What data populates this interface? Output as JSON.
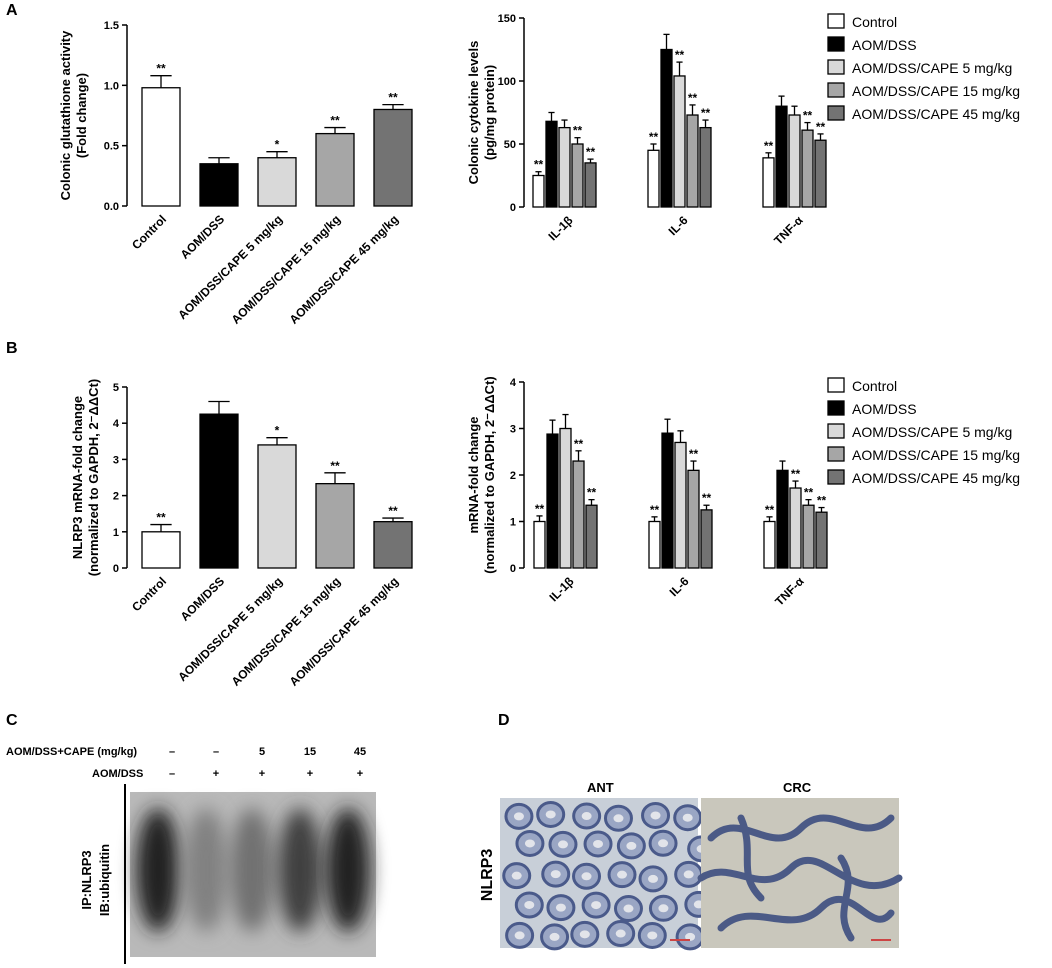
{
  "panels": {
    "A": "A",
    "B": "B",
    "C": "C",
    "D": "D"
  },
  "groups": [
    "Control",
    "AOM/DSS",
    "AOM/DSS/CAPE 5 mg/kg",
    "AOM/DSS/CAPE 15 mg/kg",
    "AOM/DSS/CAPE 45 mg/kg"
  ],
  "colors": {
    "Control": "#ffffff",
    "AOM/DSS": "#000000",
    "AOM/DSS/CAPE 5 mg/kg": "#d9d9d9",
    "AOM/DSS/CAPE 15 mg/kg": "#a6a6a6",
    "AOM/DSS/CAPE 45 mg/kg": "#737373"
  },
  "chart_data": [
    {
      "id": "A-left",
      "type": "bar",
      "ylabel_lines": [
        "Colonic glutathione activity",
        "(Fold change)"
      ],
      "ylim": [
        0,
        1.5
      ],
      "yticks": [
        "0.0",
        "0.5",
        "1.0",
        "1.5"
      ],
      "categories": [
        "Control",
        "AOM/DSS",
        "AOM/DSS/CAPE 5 mg/kg",
        "AOM/DSS/CAPE 15 mg/kg",
        "AOM/DSS/CAPE 45 mg/kg"
      ],
      "values": [
        0.98,
        0.35,
        0.4,
        0.6,
        0.8
      ],
      "errors": [
        0.1,
        0.05,
        0.05,
        0.05,
        0.04
      ],
      "annotations": [
        "**",
        "",
        "*",
        "**",
        "**"
      ]
    },
    {
      "id": "A-right",
      "type": "bar",
      "ylabel_lines": [
        "Colonic cytokine levels",
        "(pg/mg protein)"
      ],
      "ylim": [
        0,
        150
      ],
      "yticks": [
        "0",
        "50",
        "100",
        "150"
      ],
      "categories": [
        "IL-1β",
        "IL-6",
        "TNF-α"
      ],
      "series": [
        {
          "name": "Control",
          "values": [
            25,
            45,
            39
          ],
          "errors": [
            3,
            5,
            4
          ],
          "annotations": [
            "**",
            "**",
            "**"
          ]
        },
        {
          "name": "AOM/DSS",
          "values": [
            68,
            125,
            80
          ],
          "errors": [
            7,
            12,
            8
          ],
          "annotations": [
            "",
            "",
            ""
          ]
        },
        {
          "name": "AOM/DSS/CAPE 5 mg/kg",
          "values": [
            63,
            104,
            73
          ],
          "errors": [
            6,
            11,
            7
          ],
          "annotations": [
            "",
            "**",
            ""
          ]
        },
        {
          "name": "AOM/DSS/CAPE 15 mg/kg",
          "values": [
            50,
            73,
            61
          ],
          "errors": [
            5,
            8,
            6
          ],
          "annotations": [
            "**",
            "**",
            "**"
          ]
        },
        {
          "name": "AOM/DSS/CAPE 45 mg/kg",
          "values": [
            35,
            63,
            53
          ],
          "errors": [
            3,
            6,
            5
          ],
          "annotations": [
            "**",
            "**",
            "**"
          ]
        }
      ],
      "legend": "right"
    },
    {
      "id": "B-left",
      "type": "bar",
      "ylabel_lines": [
        "NLRP3 mRNA-fold change",
        "(normalized to GAPDH, 2⁻ΔΔCt)"
      ],
      "ylim": [
        0,
        5
      ],
      "yticks": [
        "0",
        "1",
        "2",
        "3",
        "4",
        "5"
      ],
      "categories": [
        "Control",
        "AOM/DSS",
        "AOM/DSS/CAPE 5 mg/kg",
        "AOM/DSS/CAPE 15 mg/kg",
        "AOM/DSS/CAPE 45 mg/kg"
      ],
      "values": [
        1.0,
        4.25,
        3.4,
        2.33,
        1.28
      ],
      "errors": [
        0.2,
        0.35,
        0.2,
        0.3,
        0.1
      ],
      "annotations": [
        "**",
        "",
        "*",
        "**",
        "**"
      ]
    },
    {
      "id": "B-right",
      "type": "bar",
      "ylabel_lines": [
        "mRNA-fold change",
        "(normalized to GAPDH, 2⁻ΔΔCt)"
      ],
      "ylim": [
        0,
        4
      ],
      "yticks": [
        "0",
        "1",
        "2",
        "3",
        "4"
      ],
      "categories": [
        "IL-1β",
        "IL-6",
        "TNF-α"
      ],
      "series": [
        {
          "name": "Control",
          "values": [
            1.0,
            1.0,
            1.0
          ],
          "errors": [
            0.12,
            0.1,
            0.1
          ],
          "annotations": [
            "**",
            "**",
            "**"
          ]
        },
        {
          "name": "AOM/DSS",
          "values": [
            2.88,
            2.9,
            2.1
          ],
          "errors": [
            0.3,
            0.3,
            0.2
          ],
          "annotations": [
            "",
            "",
            ""
          ]
        },
        {
          "name": "AOM/DSS/CAPE 5 mg/kg",
          "values": [
            3.0,
            2.7,
            1.72
          ],
          "errors": [
            0.3,
            0.25,
            0.15
          ],
          "annotations": [
            "",
            "",
            "**"
          ]
        },
        {
          "name": "AOM/DSS/CAPE 15 mg/kg",
          "values": [
            2.3,
            2.1,
            1.35
          ],
          "errors": [
            0.22,
            0.2,
            0.12
          ],
          "annotations": [
            "**",
            "**",
            "**"
          ]
        },
        {
          "name": "AOM/DSS/CAPE 45 mg/kg",
          "values": [
            1.35,
            1.25,
            1.2
          ],
          "errors": [
            0.12,
            0.1,
            0.1
          ],
          "annotations": [
            "**",
            "**",
            "**"
          ]
        }
      ],
      "legend": "right"
    }
  ],
  "blot": {
    "row1_label": "AOM/DSS+CAPE (mg/kg)",
    "row1_values": [
      "–",
      "–",
      "5",
      "15",
      "45"
    ],
    "row2_label": "AOM/DSS",
    "row2_values": [
      "–",
      "+",
      "+",
      "+",
      "+"
    ],
    "ylabel_line1": "IP:NLRP3",
    "ylabel_line2": "IB:ubiquitin",
    "band_intensity": [
      0.95,
      0.35,
      0.45,
      0.75,
      0.95
    ]
  },
  "ihc": {
    "row_label": "NLRP3",
    "left_title": "ANT",
    "right_title": "CRC"
  }
}
